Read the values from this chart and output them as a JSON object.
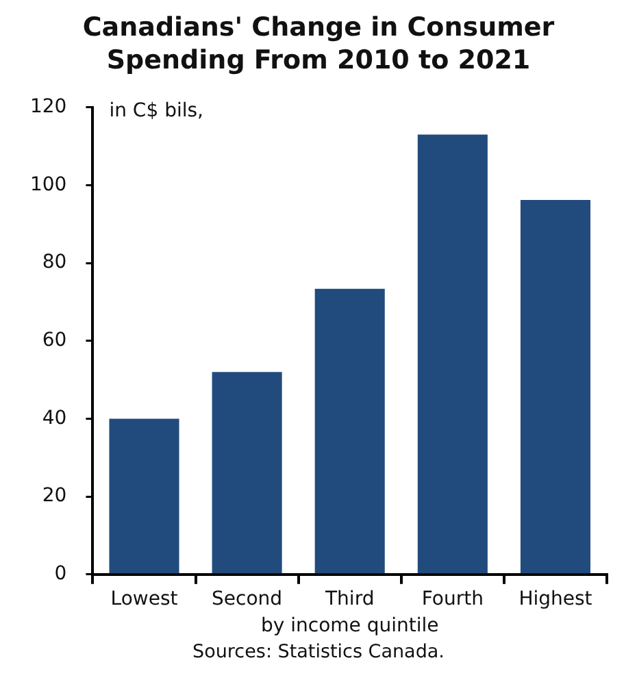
{
  "chart_data": {
    "type": "bar",
    "title": "Canadians' Change in Consumer Spending From 2010 to 2021",
    "subtitle": "in C$ bils,",
    "xlabel": "by income quintile",
    "annotations": [
      "Sources: Statistics Canada."
    ],
    "categories": [
      "Lowest",
      "Second",
      "Third",
      "Fourth",
      "Highest"
    ],
    "values": [
      40,
      52,
      73.4,
      113,
      96.2
    ],
    "color": "#214b7c",
    "ylim": [
      0,
      120
    ],
    "yticks": [
      0,
      20,
      40,
      60,
      80,
      100,
      120
    ],
    "grid": false,
    "legend": false
  }
}
